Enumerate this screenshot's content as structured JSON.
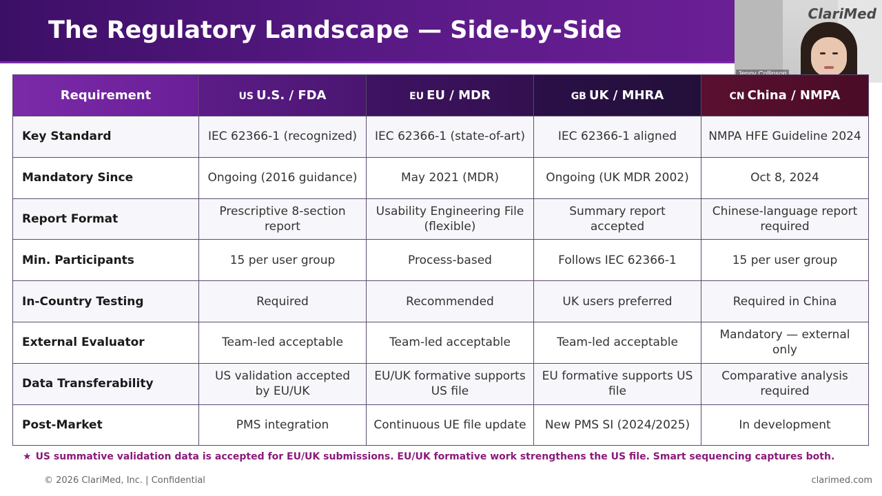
{
  "slide": {
    "title": "The Regulatory Landscape — Side-by-Side"
  },
  "video": {
    "logo": "ClariMed",
    "presenter_name": "Jenny Collinson"
  },
  "table": {
    "headers": [
      {
        "code": "",
        "label": "Requirement"
      },
      {
        "code": "US",
        "label": "U.S. / FDA"
      },
      {
        "code": "EU",
        "label": "EU / MDR"
      },
      {
        "code": "GB",
        "label": "UK / MHRA"
      },
      {
        "code": "CN",
        "label": "China / NMPA"
      }
    ],
    "rows": [
      {
        "label": "Key Standard",
        "cells": [
          "IEC 62366-1 (recognized)",
          "IEC 62366-1 (state-of-art)",
          "IEC 62366-1 aligned",
          "NMPA HFE Guideline 2024"
        ]
      },
      {
        "label": "Mandatory Since",
        "cells": [
          "Ongoing (2016 guidance)",
          "May 2021 (MDR)",
          "Ongoing (UK MDR 2002)",
          "Oct 8, 2024"
        ]
      },
      {
        "label": "Report Format",
        "cells": [
          "Prescriptive 8-section report",
          "Usability Engineering File (flexible)",
          "Summary report accepted",
          "Chinese-language report required"
        ]
      },
      {
        "label": "Min. Participants",
        "cells": [
          "15 per user group",
          "Process-based",
          "Follows IEC 62366-1",
          "15 per user group"
        ]
      },
      {
        "label": "In-Country Testing",
        "cells": [
          "Required",
          "Recommended",
          "UK users preferred",
          "Required in China"
        ]
      },
      {
        "label": "External Evaluator",
        "cells": [
          "Team-led acceptable",
          "Team-led acceptable",
          "Team-led acceptable",
          "Mandatory — external only"
        ]
      },
      {
        "label": "Data Transferability",
        "cells": [
          "US validation accepted by EU/UK",
          "EU/UK formative supports US file",
          "EU formative supports US file",
          "Comparative analysis required"
        ]
      },
      {
        "label": "Post-Market",
        "cells": [
          "PMS integration",
          "Continuous UE file update",
          "New PMS SI (2024/2025)",
          "In development"
        ]
      }
    ]
  },
  "footnote": {
    "star": "★",
    "text": "US summative validation data is accepted for EU/UK submissions. EU/UK formative work strengthens the US file. Smart sequencing captures both."
  },
  "footer": {
    "copyright": "© 2026 ClariMed, Inc. | Confidential",
    "site": "clarimed.com"
  },
  "colors": {
    "title_bar": "#5a1a86",
    "header_us": "#5c1c88",
    "header_eu": "#3e1363",
    "header_uk": "#2a0f48",
    "header_cn": "#5a1030",
    "footnote": "#8a1a7a"
  }
}
